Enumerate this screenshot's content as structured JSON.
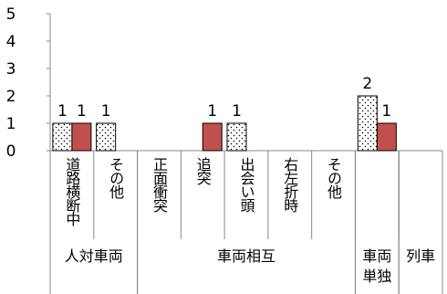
{
  "chart_data": {
    "type": "bar",
    "categories": [
      "道路横断中",
      "その他",
      "正面衝突",
      "追突",
      "出会い頭",
      "右左折時",
      "その他",
      null,
      null
    ],
    "groups": [
      {
        "label": "人対車両",
        "size": 2
      },
      {
        "label": "車両相互",
        "size": 5
      },
      {
        "label": "車両単独",
        "size": 1
      },
      {
        "label": "列車",
        "size": 1
      }
    ],
    "series": [
      {
        "color": "#ffffff",
        "pattern": "dots",
        "values": [
          1,
          1,
          null,
          null,
          1,
          null,
          null,
          2,
          null
        ]
      },
      {
        "color": "#c0504d",
        "values": [
          1,
          null,
          null,
          1,
          null,
          null,
          null,
          1,
          null
        ]
      }
    ],
    "ylim": [
      0,
      5
    ],
    "yticks": [
      0,
      1,
      2,
      3,
      4,
      5
    ],
    "grid": false
  }
}
